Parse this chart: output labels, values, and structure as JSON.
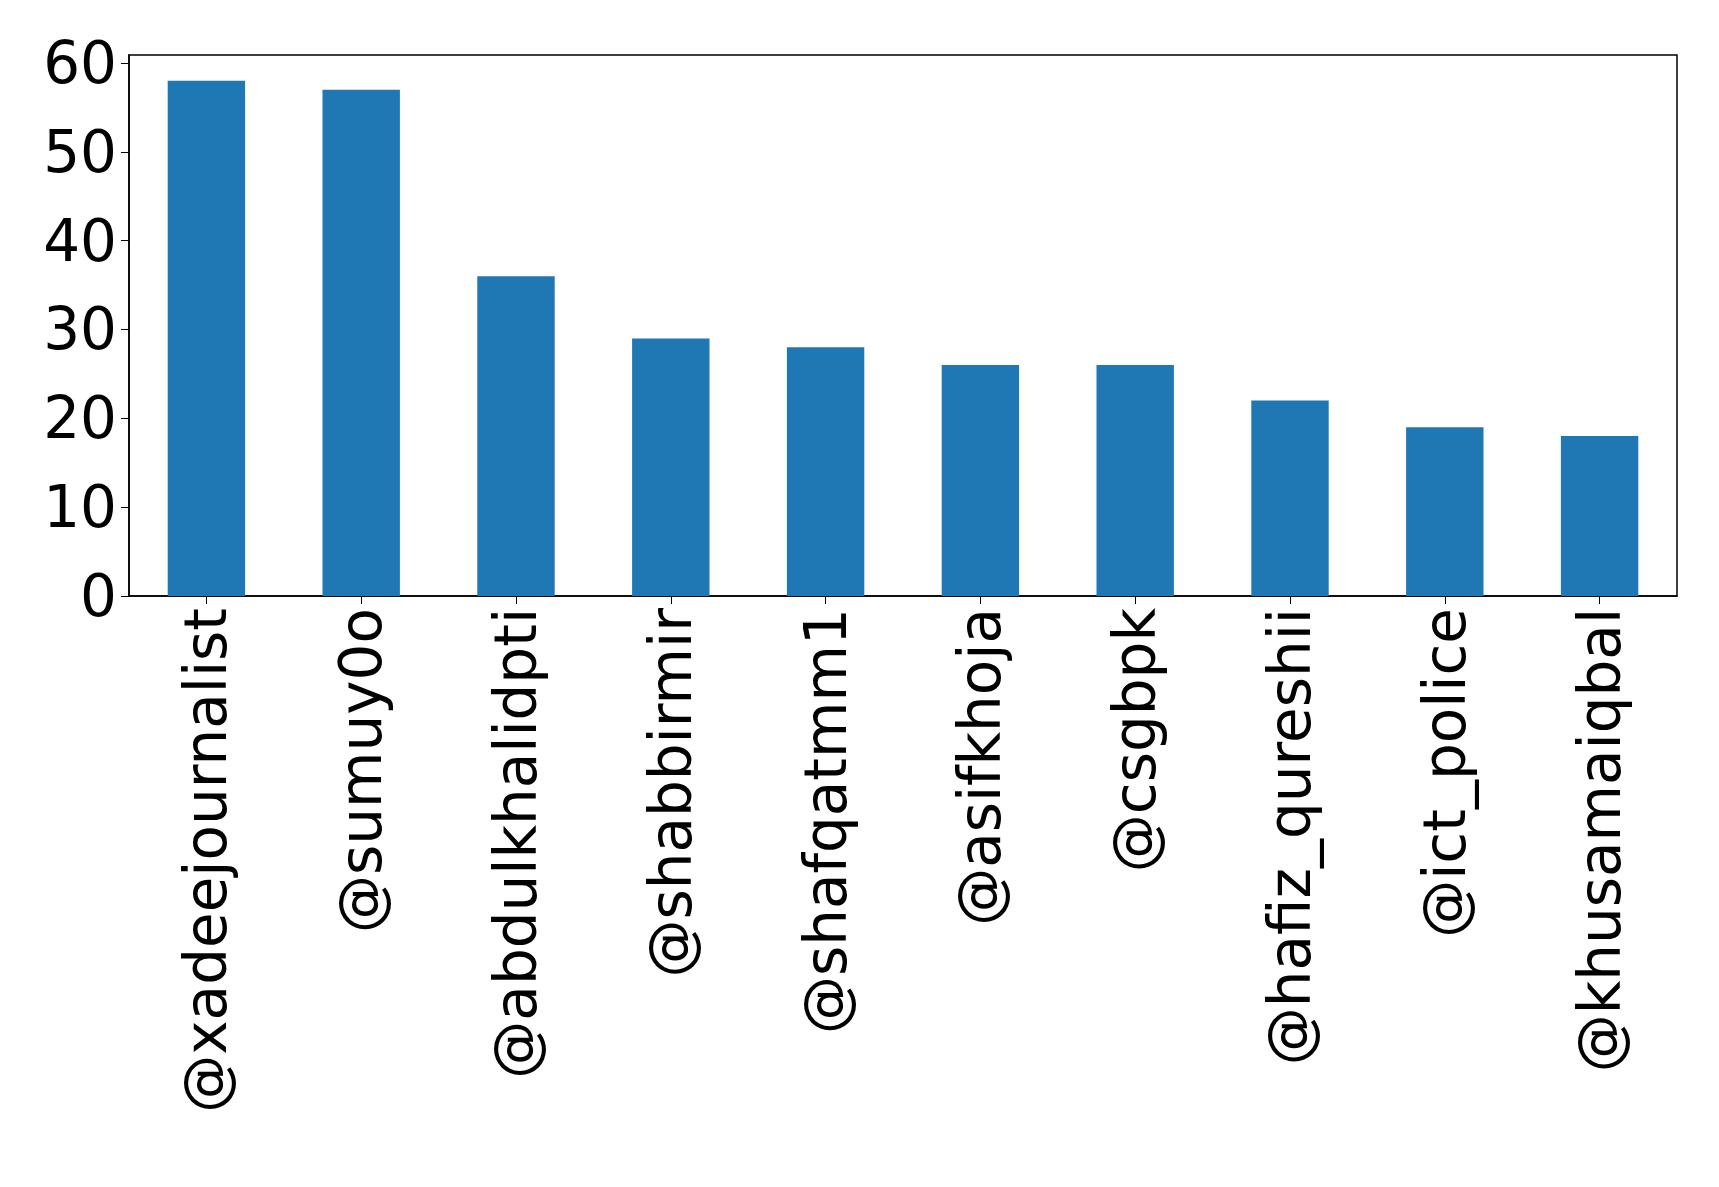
{
  "chart_data": {
    "type": "bar",
    "categories": [
      "@xadeejournalist",
      "@sumuy0o",
      "@abdulkhalidpti",
      "@shabbirmir",
      "@shafqatmm1",
      "@asifkhoja",
      "@csgbpk",
      "@hafiz_qureshii",
      "@ict_police",
      "@khusamaiqbal"
    ],
    "values": [
      58,
      57,
      36,
      29,
      28,
      26,
      26,
      22,
      19,
      18
    ],
    "color": "#1f77b4",
    "ylim": [
      0,
      60.9
    ],
    "yticks": [
      0,
      10,
      20,
      30,
      40,
      50,
      60
    ],
    "grid": false
  }
}
